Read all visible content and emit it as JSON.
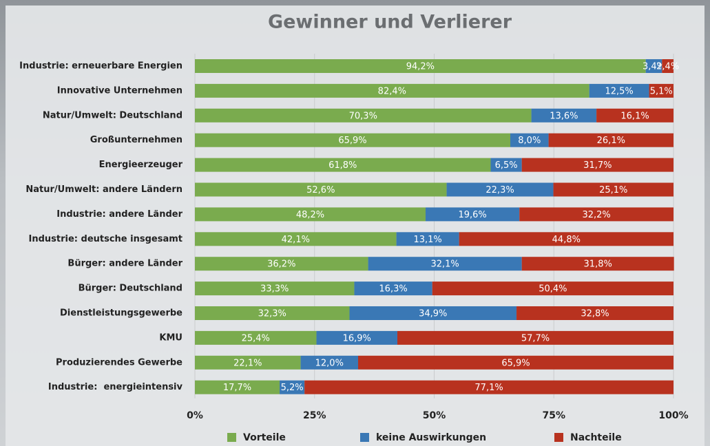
{
  "chart_data": {
    "type": "stacked-bar-horizontal",
    "title": "Gewinner und Verlierer",
    "categories": [
      "Industrie: erneuerbare Energien",
      "Innovative Unternehmen",
      "Natur/Umwelt: Deutschland",
      "Großunternehmen",
      "Energieerzeuger",
      "Natur/Umwelt: andere Ländern",
      "Industrie: andere Länder",
      "Industrie: deutsche insgesamt",
      "Bürger: andere Länder",
      "Bürger: Deutschland",
      "Dienstleistungsgewerbe",
      "KMU",
      "Produzierendes Gewerbe",
      "Industrie:  energieintensiv"
    ],
    "series": [
      {
        "name": "Vorteile",
        "color": "#7aab4e",
        "values": [
          94.2,
          82.4,
          70.3,
          65.9,
          61.8,
          52.6,
          48.2,
          42.1,
          36.2,
          33.3,
          32.3,
          25.4,
          22.1,
          17.7
        ],
        "value_labels": [
          "94,2%",
          "82,4%",
          "70,3%",
          "65,9%",
          "61,8%",
          "52,6%",
          "48,2%",
          "42,1%",
          "36,2%",
          "33,3%",
          "32,3%",
          "25,4%",
          "22,1%",
          "17,7%"
        ]
      },
      {
        "name": "keine Auswirkungen",
        "color": "#3a78b5",
        "values": [
          3.4,
          12.5,
          13.6,
          8.0,
          6.5,
          22.3,
          19.6,
          13.1,
          32.1,
          16.3,
          34.9,
          16.9,
          12.0,
          5.2
        ],
        "value_labels": [
          "3,4%",
          "12,5%",
          "13,6%",
          "8,0%",
          "6,5%",
          "22,3%",
          "19,6%",
          "13,1%",
          "32,1%",
          "16,3%",
          "34,9%",
          "16,9%",
          "12,0%",
          "5,2%"
        ]
      },
      {
        "name": "Nachteile",
        "color": "#b8321f",
        "values": [
          2.4,
          5.1,
          16.1,
          26.1,
          31.7,
          25.1,
          32.2,
          44.8,
          31.8,
          50.4,
          32.8,
          57.7,
          65.9,
          77.1
        ],
        "value_labels": [
          "2,4%",
          "5,1%",
          "16,1%",
          "26,1%",
          "31,7%",
          "25,1%",
          "32,2%",
          "44,8%",
          "31,8%",
          "50,4%",
          "32,8%",
          "57,7%",
          "65,9%",
          "77,1%"
        ]
      }
    ],
    "xlim": [
      0,
      100
    ],
    "xticks": [
      {
        "value": 0,
        "label": "0%"
      },
      {
        "value": 25,
        "label": "25%"
      },
      {
        "value": 50,
        "label": "50%"
      },
      {
        "value": 75,
        "label": "75%"
      },
      {
        "value": 100,
        "label": "100%"
      }
    ],
    "grid": true,
    "legend": "bottom"
  }
}
